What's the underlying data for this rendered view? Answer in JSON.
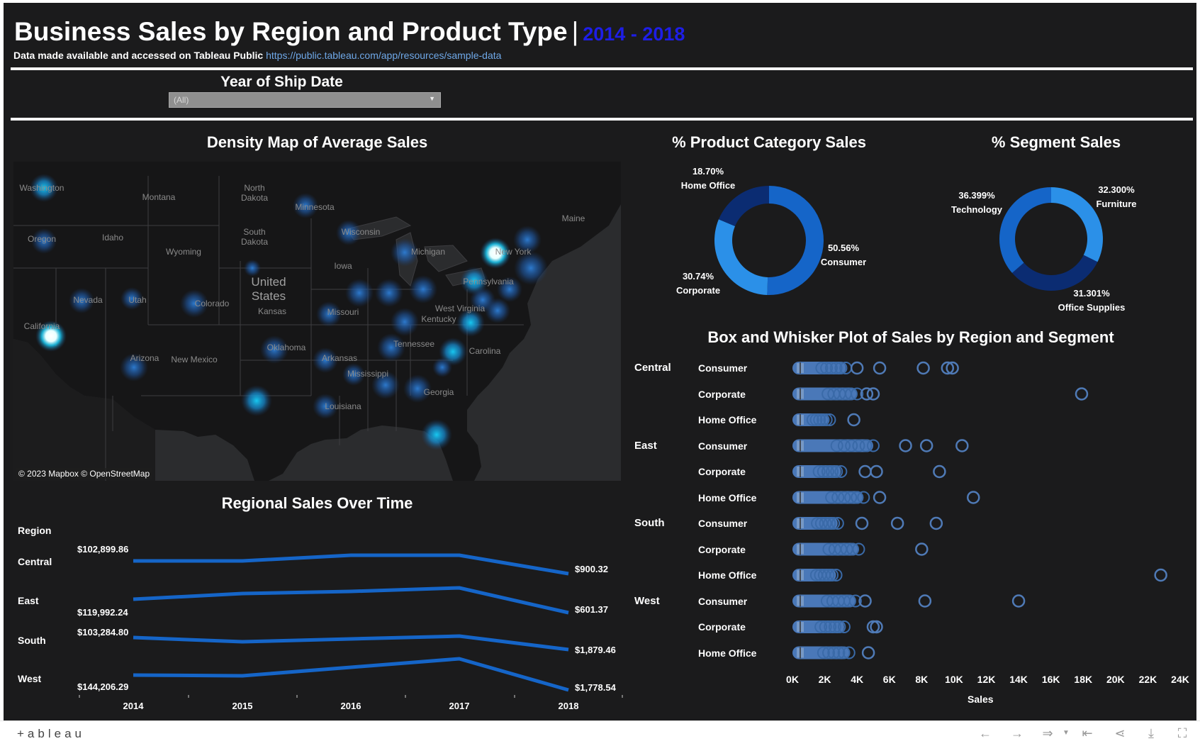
{
  "header": {
    "title": "Business Sales by Region and Product Type",
    "separator": "|",
    "years": "2014 - 2018",
    "subtitle_prefix": "Data made available and accessed on Tableau Public",
    "subtitle_link": "https://public.tableau.com/app/resources/sample-data"
  },
  "filter": {
    "label": "Year of Ship Date",
    "selected": "(All)"
  },
  "map": {
    "title": "Density Map of Average Sales",
    "attribution": "© 2023 Mapbox  © OpenStreetMap",
    "labels": [
      "Washington",
      "Montana",
      "North Dakota",
      "Minnesota",
      "Maine",
      "Oregon",
      "Idaho",
      "South Dakota",
      "Wyoming",
      "Wisconsin",
      "Michigan",
      "New York",
      "Iowa",
      "United States",
      "Kansas",
      "Nevada",
      "Utah",
      "Colorado",
      "Pennsylvania",
      "West Virginia",
      "California",
      "Missouri",
      "Kentucky",
      "Oklahoma",
      "Tennessee",
      "Carolina",
      "Arizona",
      "New Mexico",
      "Arkansas",
      "Mississippi",
      "Georgia",
      "Louisiana"
    ]
  },
  "category_donut": {
    "title": "% Product Category Sales",
    "slices": [
      {
        "name": "Consumer",
        "pct": "50.56%",
        "value": 50.56,
        "color": "#1565c8"
      },
      {
        "name": "Corporate",
        "pct": "30.74%",
        "value": 30.74,
        "color": "#2b90e8"
      },
      {
        "name": "Home Office",
        "pct": "18.70%",
        "value": 18.7,
        "color": "#0b2c72"
      }
    ]
  },
  "segment_donut": {
    "title": "% Segment Sales",
    "slices": [
      {
        "name": "Furniture",
        "pct": "32.300%",
        "value": 32.3,
        "color": "#2b90e8"
      },
      {
        "name": "Office Supplies",
        "pct": "31.301%",
        "value": 31.301,
        "color": "#0b2c72"
      },
      {
        "name": "Technology",
        "pct": "36.399%",
        "value": 36.399,
        "color": "#1565c8"
      }
    ]
  },
  "box_plot": {
    "title": "Box and Whisker Plot of Sales by Region and Segment",
    "x_label": "Sales",
    "ticks": [
      "0K",
      "2K",
      "4K",
      "6K",
      "8K",
      "10K",
      "12K",
      "14K",
      "16K",
      "18K",
      "20K",
      "22K",
      "24K"
    ],
    "regions": [
      "Central",
      "East",
      "South",
      "West"
    ],
    "rows": [
      {
        "region": "Central",
        "segment": "Consumer",
        "max_dense": 3300,
        "outliers": [
          4000,
          5400,
          8100,
          9600,
          9900
        ]
      },
      {
        "region": "",
        "segment": "Corporate",
        "max_dense": 4000,
        "outliers": [
          4600,
          5000,
          17900
        ]
      },
      {
        "region": "",
        "segment": "Home Office",
        "max_dense": 2300,
        "outliers": [
          3800
        ]
      },
      {
        "region": "East",
        "segment": "Consumer",
        "max_dense": 5000,
        "outliers": [
          7000,
          8300,
          10500
        ]
      },
      {
        "region": "",
        "segment": "Corporate",
        "max_dense": 3000,
        "outliers": [
          4500,
          5200,
          9100
        ]
      },
      {
        "region": "",
        "segment": "Home Office",
        "max_dense": 4400,
        "outliers": [
          5400,
          11200
        ]
      },
      {
        "region": "South",
        "segment": "Consumer",
        "max_dense": 2800,
        "outliers": [
          4300,
          6500,
          8900
        ]
      },
      {
        "region": "",
        "segment": "Corporate",
        "max_dense": 4100,
        "outliers": [
          8000
        ]
      },
      {
        "region": "",
        "segment": "Home Office",
        "max_dense": 2700,
        "outliers": [
          22800
        ]
      },
      {
        "region": "West",
        "segment": "Consumer",
        "max_dense": 3900,
        "outliers": [
          4500,
          8200,
          14000
        ]
      },
      {
        "region": "",
        "segment": "Corporate",
        "max_dense": 3200,
        "outliers": [
          5000,
          5200
        ]
      },
      {
        "region": "",
        "segment": "Home Office",
        "max_dense": 3500,
        "outliers": [
          4700
        ]
      }
    ]
  },
  "line_chart": {
    "title": "Regional Sales Over Time",
    "legend_title": "Region",
    "years": [
      "2014",
      "2015",
      "2016",
      "2017",
      "2018"
    ],
    "series": [
      {
        "name": "Central",
        "start_label": "$102,899.86",
        "end_label": "$900.32"
      },
      {
        "name": "East",
        "start_label": "$119,992.24",
        "end_label": "$601.37"
      },
      {
        "name": "South",
        "start_label": "$103,284.80",
        "end_label": "$1,879.46"
      },
      {
        "name": "West",
        "start_label": "$144,206.29",
        "end_label": "$1,778.54"
      }
    ],
    "color": "#1565c8"
  },
  "chart_data": [
    {
      "type": "pie",
      "title": "% Product Category Sales",
      "categories": [
        "Consumer",
        "Corporate",
        "Home Office"
      ],
      "values": [
        50.56,
        30.74,
        18.7
      ]
    },
    {
      "type": "pie",
      "title": "% Segment Sales",
      "categories": [
        "Furniture",
        "Office Supplies",
        "Technology"
      ],
      "values": [
        32.3,
        31.301,
        36.399
      ]
    },
    {
      "type": "line",
      "title": "Regional Sales Over Time",
      "x": [
        "2014",
        "2015",
        "2016",
        "2017",
        "2018"
      ],
      "series": [
        {
          "name": "Central",
          "first_value": 102899.86,
          "last_value": 900.32
        },
        {
          "name": "East",
          "first_value": 119992.24,
          "last_value": 601.37
        },
        {
          "name": "South",
          "first_value": 103284.8,
          "last_value": 1879.46
        },
        {
          "name": "West",
          "first_value": 144206.29,
          "last_value": 1778.54
        }
      ]
    },
    {
      "type": "scatter",
      "title": "Box and Whisker Plot of Sales by Region and Segment",
      "xlabel": "Sales",
      "xlim": [
        0,
        24000
      ]
    }
  ],
  "footer": {
    "logo": "+ableau"
  }
}
